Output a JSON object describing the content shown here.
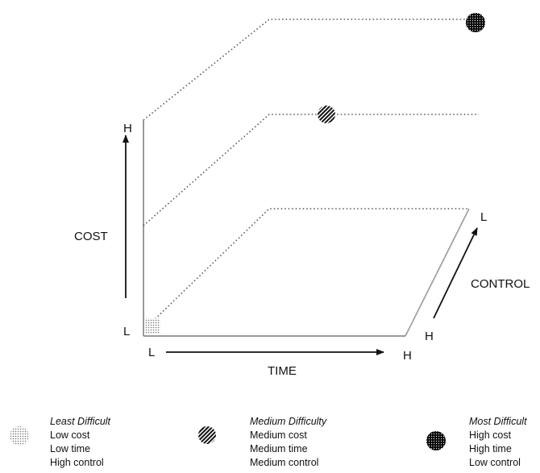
{
  "axes": {
    "cost": {
      "label": "COST",
      "high": "H",
      "low": "L"
    },
    "time": {
      "label": "TIME",
      "low": "L",
      "high": "H"
    },
    "control": {
      "label": "CONTROL",
      "high": "H",
      "low": "L"
    }
  },
  "legend": [
    {
      "title": "Least Difficult",
      "lines": [
        "Low cost",
        "Low time",
        "High control"
      ],
      "pattern": "dotted-light"
    },
    {
      "title": "Medium Difficulty",
      "lines": [
        "Medium cost",
        "Medium time",
        "Medium control"
      ],
      "pattern": "striped"
    },
    {
      "title": "Most Difficult",
      "lines": [
        "High cost",
        "High time",
        "Low control"
      ],
      "pattern": "dotted-dark"
    }
  ],
  "colors": {
    "line": "#9a9a9a",
    "dotted": "#555555",
    "marker": "#111111"
  }
}
